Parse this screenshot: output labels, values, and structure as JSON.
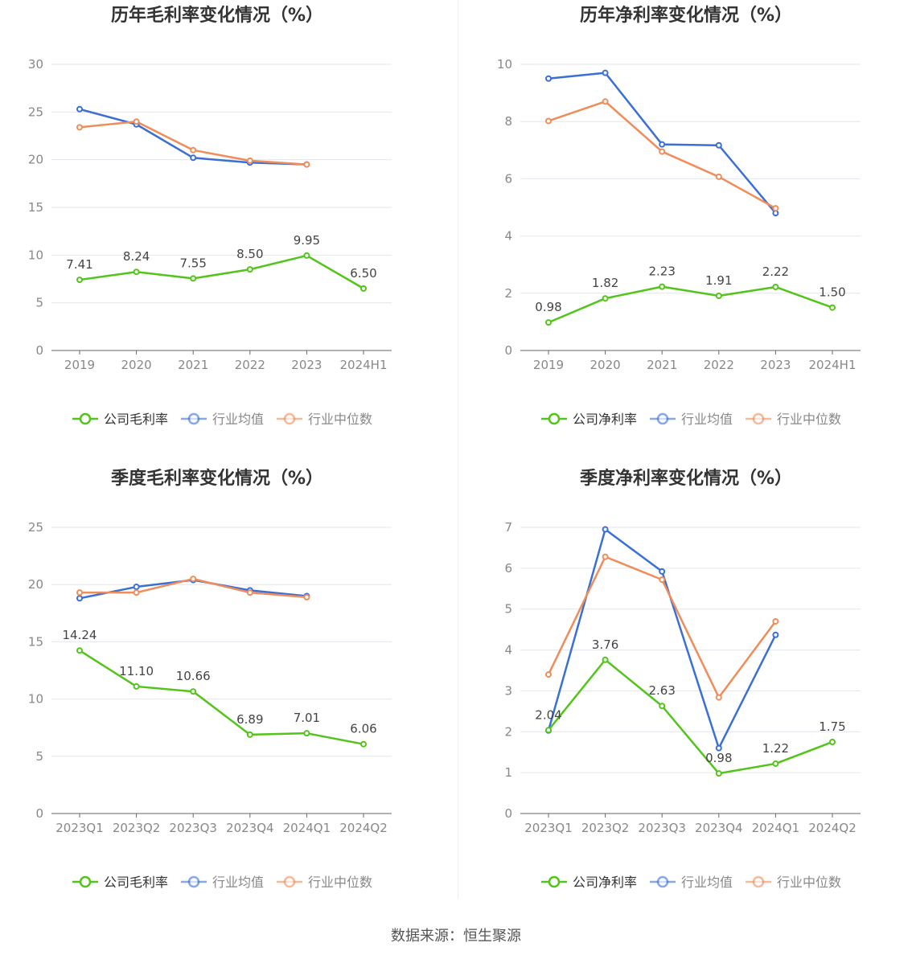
{
  "colors": {
    "company": "#52c41a",
    "avg": "#3a6fd8",
    "median": "#f08c5a"
  },
  "legend_labels": {
    "gross": [
      "公司毛利率",
      "行业均值",
      "行业中位数"
    ],
    "net": [
      "公司净利率",
      "行业均值",
      "行业中位数"
    ]
  },
  "source": "数据来源：恒生聚源",
  "chart_data": [
    {
      "type": "line",
      "title": "历年毛利率变化情况（%）",
      "categories": [
        "2019",
        "2020",
        "2021",
        "2022",
        "2023",
        "2024H1"
      ],
      "ylim": [
        0,
        30
      ],
      "yticks": [
        0,
        5,
        10,
        15,
        20,
        25,
        30
      ],
      "legend": "bottom",
      "grid": true,
      "series": [
        {
          "name": "公司毛利率",
          "color": "company",
          "values": [
            7.41,
            8.24,
            7.55,
            8.5,
            9.95,
            6.5
          ],
          "labels": [
            "7.41",
            "8.24",
            "7.55",
            "8.50",
            "9.95",
            "6.50"
          ]
        },
        {
          "name": "行业均值",
          "color": "avg",
          "values": [
            25.3,
            23.7,
            20.2,
            19.7,
            19.5,
            null
          ]
        },
        {
          "name": "行业中位数",
          "color": "median",
          "values": [
            23.4,
            24.0,
            21.0,
            19.9,
            19.5,
            null
          ]
        }
      ]
    },
    {
      "type": "line",
      "title": "历年净利率变化情况（%）",
      "categories": [
        "2019",
        "2020",
        "2021",
        "2022",
        "2023",
        "2024H1"
      ],
      "ylim": [
        0,
        10
      ],
      "yticks": [
        0,
        2,
        4,
        6,
        8,
        10
      ],
      "legend": "bottom",
      "grid": true,
      "series": [
        {
          "name": "公司净利率",
          "color": "company",
          "values": [
            0.98,
            1.82,
            2.23,
            1.91,
            2.22,
            1.5
          ],
          "labels": [
            "0.98",
            "1.82",
            "2.23",
            "1.91",
            "2.22",
            "1.50"
          ]
        },
        {
          "name": "行业均值",
          "color": "avg",
          "values": [
            9.5,
            9.7,
            7.2,
            7.17,
            4.8,
            null
          ]
        },
        {
          "name": "行业中位数",
          "color": "median",
          "values": [
            8.02,
            8.7,
            6.95,
            6.07,
            4.97,
            null
          ]
        }
      ]
    },
    {
      "type": "line",
      "title": "季度毛利率变化情况（%）",
      "categories": [
        "2023Q1",
        "2023Q2",
        "2023Q3",
        "2023Q4",
        "2024Q1",
        "2024Q2"
      ],
      "ylim": [
        0,
        25
      ],
      "yticks": [
        0,
        5,
        10,
        15,
        20,
        25
      ],
      "legend": "bottom",
      "grid": true,
      "series": [
        {
          "name": "公司毛利率",
          "color": "company",
          "values": [
            14.24,
            11.1,
            10.66,
            6.89,
            7.01,
            6.06
          ],
          "labels": [
            "14.24",
            "11.10",
            "10.66",
            "6.89",
            "7.01",
            "6.06"
          ]
        },
        {
          "name": "行业均值",
          "color": "avg",
          "values": [
            18.8,
            19.8,
            20.4,
            19.5,
            19.0,
            null
          ]
        },
        {
          "name": "行业中位数",
          "color": "median",
          "values": [
            19.3,
            19.3,
            20.5,
            19.3,
            18.9,
            null
          ]
        }
      ]
    },
    {
      "type": "line",
      "title": "季度净利率变化情况（%）",
      "categories": [
        "2023Q1",
        "2023Q2",
        "2023Q3",
        "2023Q4",
        "2024Q1",
        "2024Q2"
      ],
      "ylim": [
        0,
        7
      ],
      "yticks": [
        0,
        1,
        2,
        3,
        4,
        5,
        6,
        7
      ],
      "legend": "bottom",
      "grid": true,
      "series": [
        {
          "name": "公司净利率",
          "color": "company",
          "values": [
            2.04,
            3.76,
            2.63,
            0.98,
            1.22,
            1.75
          ],
          "labels": [
            "2.04",
            "3.76",
            "2.63",
            "0.98",
            "1.22",
            "1.75"
          ]
        },
        {
          "name": "行业均值",
          "color": "avg",
          "values": [
            2.03,
            6.95,
            5.92,
            1.6,
            4.37,
            null
          ]
        },
        {
          "name": "行业中位数",
          "color": "median",
          "values": [
            3.4,
            6.28,
            5.72,
            2.84,
            4.7,
            null
          ]
        }
      ]
    }
  ]
}
